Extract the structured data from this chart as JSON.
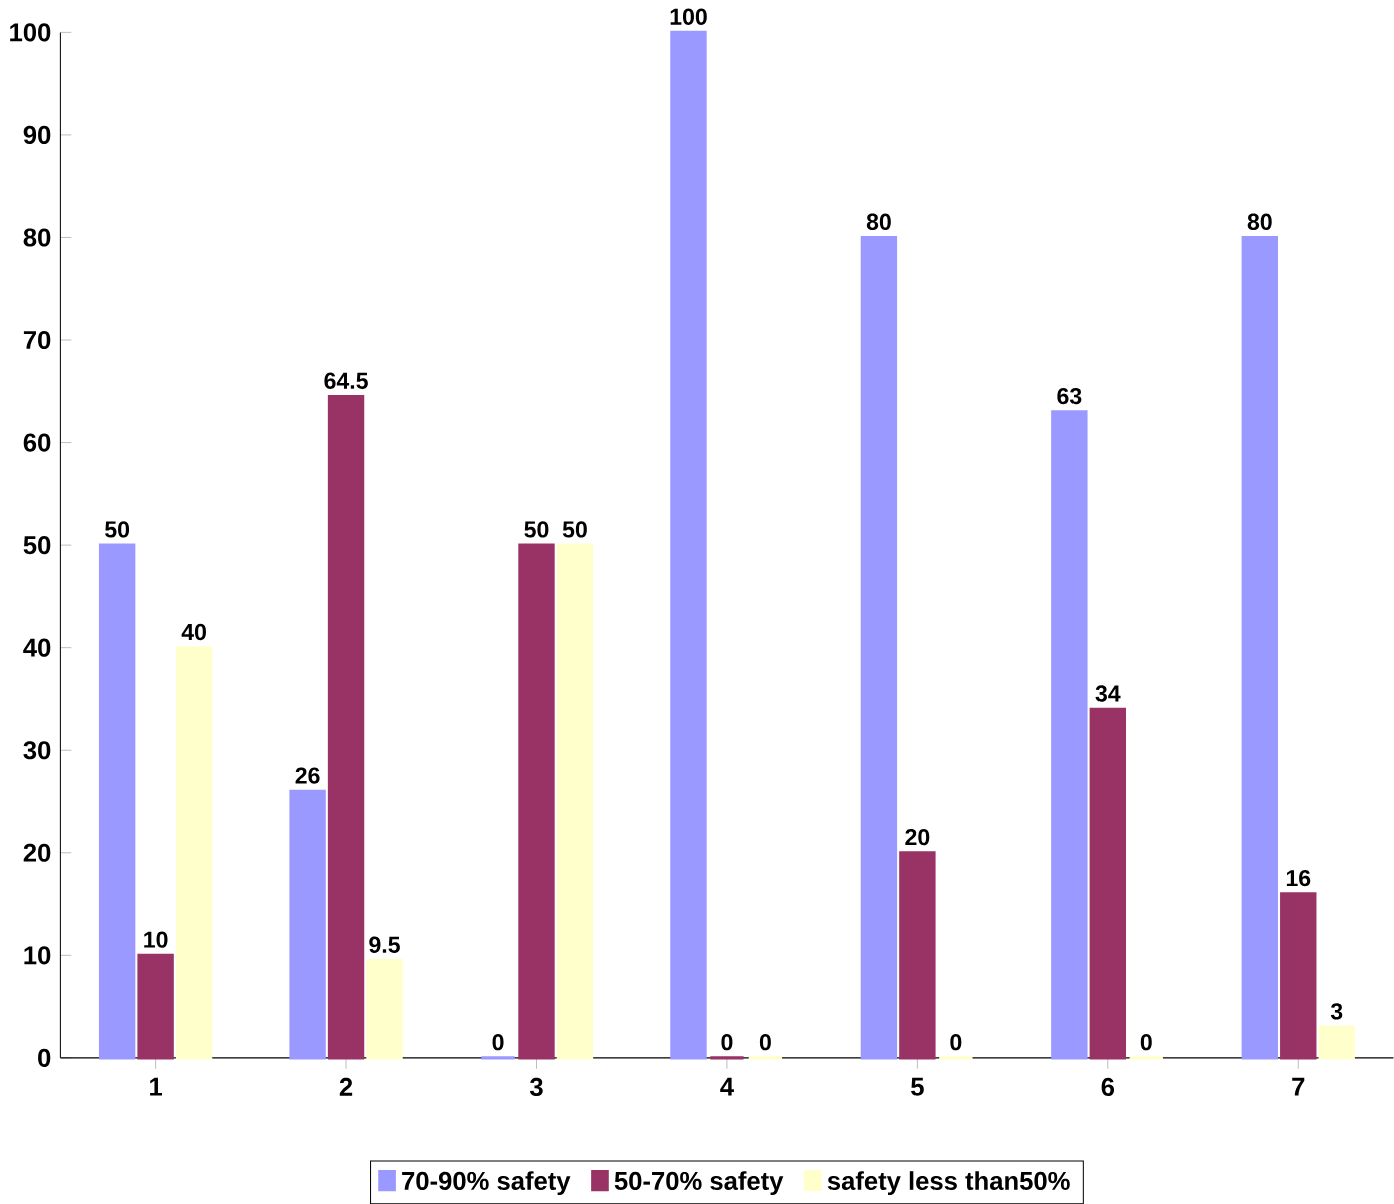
{
  "chart_data": {
    "type": "bar",
    "categories": [
      "1",
      "2",
      "3",
      "4",
      "5",
      "6",
      "7"
    ],
    "series": [
      {
        "name": "70-90% safety",
        "color": "#9999ff",
        "values": [
          50,
          26,
          0,
          100,
          80,
          63,
          80
        ]
      },
      {
        "name": "50-70% safety",
        "color": "#993366",
        "values": [
          10,
          64.5,
          50,
          0,
          20,
          34,
          16
        ]
      },
      {
        "name": "safety less than50%",
        "color": "#ffffcc",
        "values": [
          40,
          9.5,
          50,
          0,
          0,
          0,
          3
        ]
      }
    ],
    "ylim": [
      0,
      100
    ],
    "yticks": [
      0,
      10,
      20,
      30,
      40,
      50,
      60,
      70,
      80,
      90,
      100
    ],
    "data_labels": true,
    "legend": "bottom",
    "grid": false
  }
}
